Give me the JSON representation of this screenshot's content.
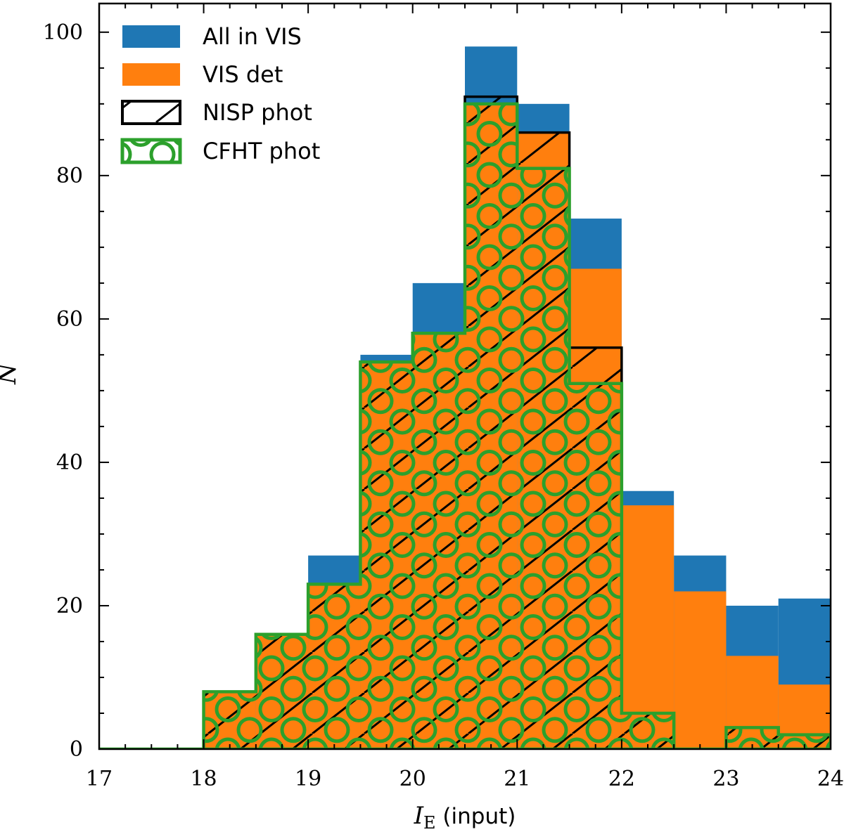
{
  "chart_data": {
    "type": "histogram",
    "bin_edges": [
      17,
      17.5,
      18,
      18.5,
      19,
      19.5,
      20,
      20.5,
      21,
      21.5,
      22,
      22.5,
      23,
      23.5,
      24
    ],
    "series": [
      {
        "name": "All in VIS",
        "style": "filled",
        "color": "#1f77b4",
        "values": [
          0,
          0,
          8,
          16,
          27,
          55,
          65,
          98,
          90,
          74,
          36,
          27,
          20,
          21
        ]
      },
      {
        "name": "VIS det",
        "style": "filled",
        "color": "#ff7f0e",
        "values": [
          0,
          0,
          8,
          16,
          23,
          54,
          58,
          90,
          86,
          67,
          34,
          22,
          13,
          9
        ]
      },
      {
        "name": "NISP phot",
        "style": "step-hatched",
        "color": "#000000",
        "hatch": "diagonal",
        "values": [
          0,
          0,
          8,
          16,
          23,
          54,
          58,
          91,
          86,
          56,
          5,
          0,
          3,
          2
        ]
      },
      {
        "name": "CFHT phot",
        "style": "step-hatched",
        "color": "#2ca02c",
        "hatch": "circles",
        "values": [
          0,
          0,
          8,
          16,
          23,
          54,
          58,
          90,
          81,
          51,
          5,
          0,
          3,
          2
        ]
      }
    ],
    "xlabel_symbol": "I",
    "xlabel_subscript": "E",
    "xlabel_suffix": " (input)",
    "ylabel": "N",
    "xlim": [
      17,
      24
    ],
    "ylim": [
      0,
      104
    ],
    "x_ticks": [
      "17",
      "18",
      "19",
      "20",
      "21",
      "22",
      "23",
      "24"
    ],
    "y_ticks": [
      "0",
      "20",
      "40",
      "60",
      "80",
      "100"
    ],
    "legend_position": "top-left"
  }
}
